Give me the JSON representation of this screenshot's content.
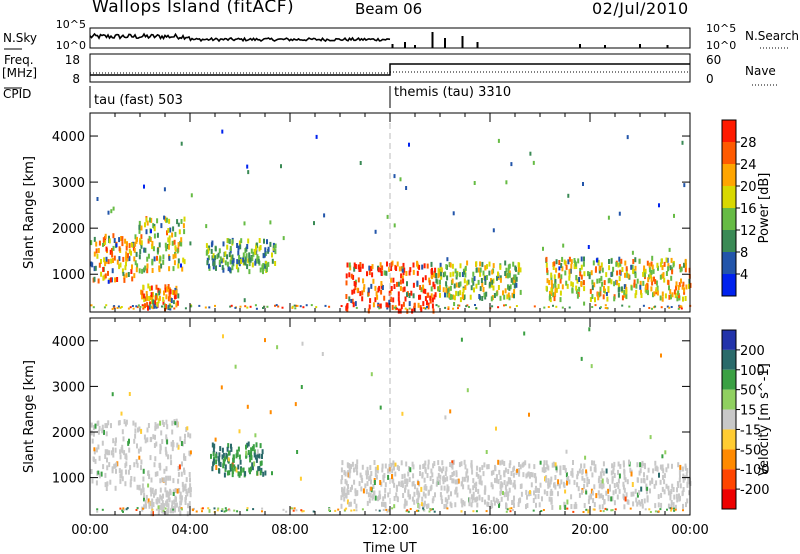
{
  "header": {
    "station": "Wallops Island (fitACF)",
    "beam": "Beam 06",
    "date": "02/Jul/2010"
  },
  "top_panels": {
    "nsky_label": "N.Sky",
    "nsearch_label": "N.Search",
    "freq_label_line1": "Freq.",
    "freq_label_line2": "[MHz]",
    "nave_label": "Nave",
    "cpid_label": "CPID",
    "left_ticks_noise": [
      "10^5",
      "10^0"
    ],
    "right_ticks_noise": [
      "10^5",
      "10^0"
    ],
    "left_ticks_freq": [
      "18",
      "8"
    ],
    "right_ticks_nave": [
      "60",
      "0"
    ],
    "cpid_segments": [
      {
        "label": "tau (fast) 503",
        "start_hour": 0
      },
      {
        "label": "themis (tau) 3310",
        "start_hour": 12
      }
    ]
  },
  "colors": {
    "power_scale": [
      "#0022ee",
      "#2255aa",
      "#3a8a55",
      "#66bb44",
      "#d8d800",
      "#ffa500",
      "#ff5a00",
      "#ff1a00"
    ],
    "velocity_scale": [
      "#2233aa",
      "#2a6a6a",
      "#3aa043",
      "#90d060",
      "#c8c8c8",
      "#ffcc33",
      "#ff8a00",
      "#ff4500",
      "#ee0000"
    ]
  },
  "chart_data": [
    {
      "type": "heatmap",
      "name": "power",
      "ylabel": "Slant Range [km]",
      "xlabel": "Time UT",
      "y_ticks": [
        "4000",
        "3000",
        "2000",
        "1000"
      ],
      "x_ticks": [
        "00:00",
        "04:00",
        "08:00",
        "12:00",
        "16:00",
        "20:00",
        "00:00"
      ],
      "xlim_hours": [
        0,
        24
      ],
      "ylim_km": [
        180,
        4500
      ],
      "colorbar_label": "Power [dB]",
      "colorbar_ticks": [
        "28",
        "24",
        "20",
        "16",
        "12",
        "8",
        "4"
      ],
      "colorbar_range": [
        0,
        32
      ],
      "echo_regions": [
        {
          "t0": 0.0,
          "t1": 1.8,
          "r0": 900,
          "r1": 1900,
          "value": 22
        },
        {
          "t0": 1.8,
          "t1": 3.8,
          "r0": 1100,
          "r1": 2300,
          "value": 18
        },
        {
          "t0": 2.0,
          "t1": 3.5,
          "r0": 300,
          "r1": 800,
          "value": 24
        },
        {
          "t0": 4.6,
          "t1": 7.4,
          "r0": 1100,
          "r1": 1800,
          "value": 12
        },
        {
          "t0": 10.2,
          "t1": 13.8,
          "r0": 250,
          "r1": 1300,
          "value": 28
        },
        {
          "t0": 13.8,
          "t1": 17.2,
          "r0": 500,
          "r1": 1300,
          "value": 16
        },
        {
          "t0": 18.2,
          "t1": 24.0,
          "r0": 500,
          "r1": 1400,
          "value": 20
        }
      ]
    },
    {
      "type": "heatmap",
      "name": "velocity",
      "ylabel": "Slant Range [km]",
      "xlabel": "Time UT",
      "y_ticks": [
        "4000",
        "3000",
        "2000",
        "1000"
      ],
      "x_ticks": [
        "00:00",
        "04:00",
        "08:00",
        "12:00",
        "16:00",
        "20:00",
        "00:00"
      ],
      "xlim_hours": [
        0,
        24
      ],
      "ylim_km": [
        180,
        4500
      ],
      "colorbar_label": "Velocity [m s^-1]",
      "colorbar_ticks": [
        "200",
        "100",
        "50",
        "15",
        "-15",
        "-50",
        "-100",
        "-200"
      ],
      "echo_regions": [
        {
          "t0": 0.0,
          "t1": 4.0,
          "r0": 800,
          "r1": 2300,
          "value": 0
        },
        {
          "t0": 4.8,
          "t1": 7.0,
          "r0": 1100,
          "r1": 1800,
          "value": 100
        },
        {
          "t0": 2.0,
          "t1": 4.0,
          "r0": 250,
          "r1": 800,
          "value": 0
        },
        {
          "t0": 10.0,
          "t1": 24.0,
          "r0": 400,
          "r1": 1400,
          "value": 0
        }
      ]
    }
  ]
}
